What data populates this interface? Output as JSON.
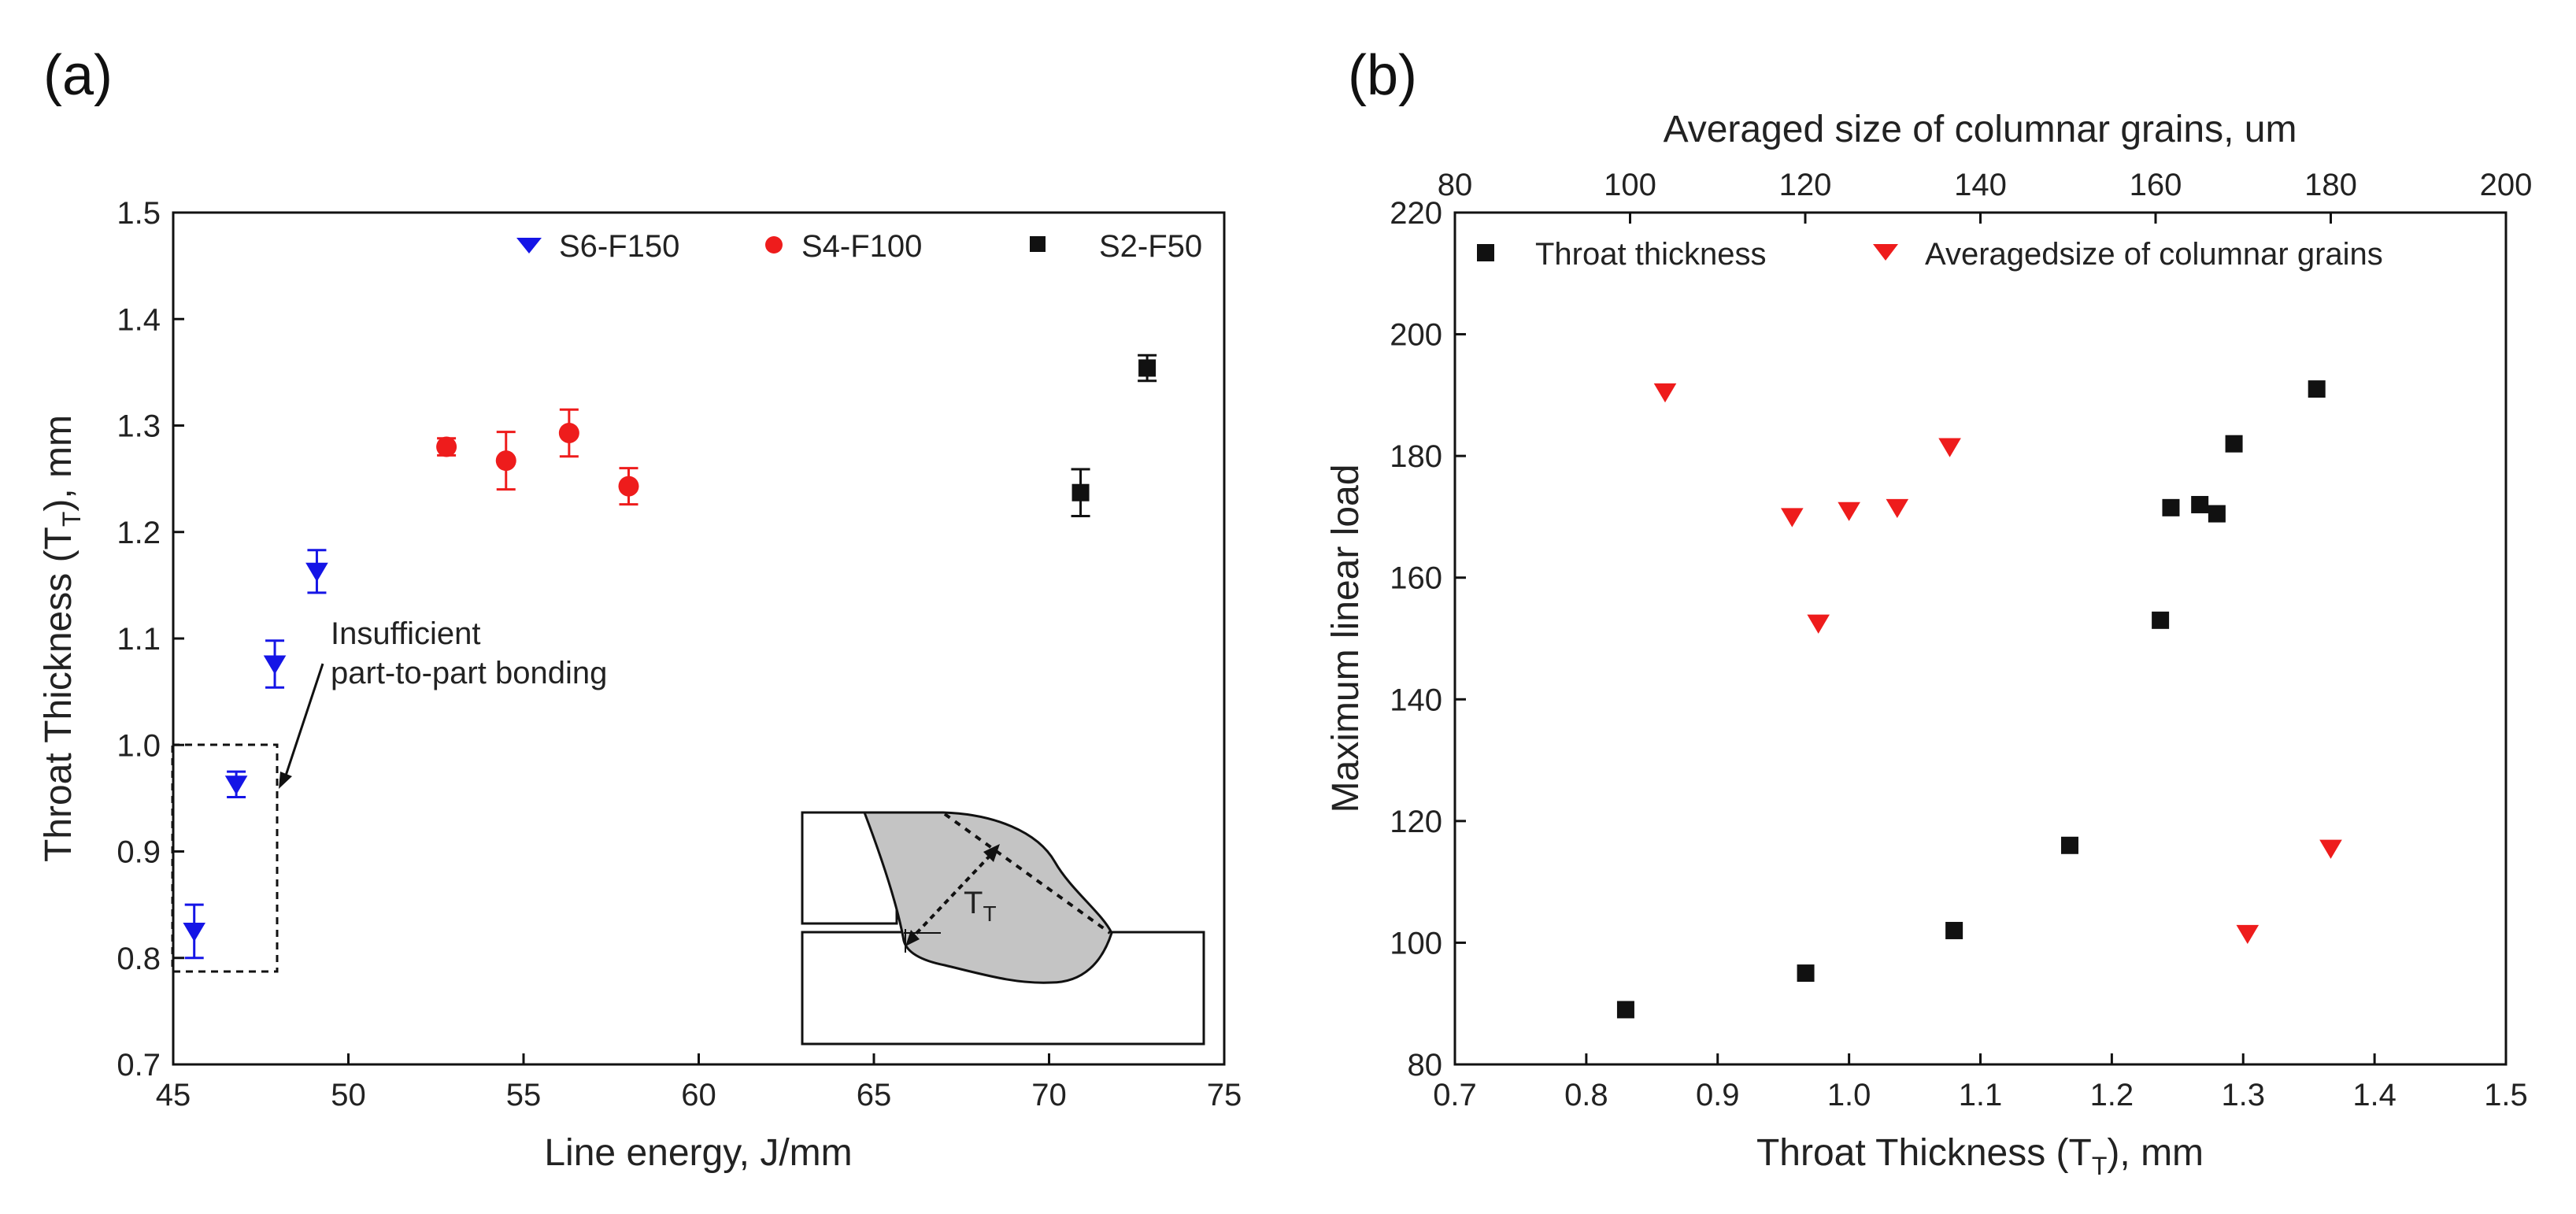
{
  "chart_data": [
    {
      "type": "scatter",
      "panel_label": "(a)",
      "xlabel": "Line energy, J/mm",
      "ylabel": "Throat Thickness (T",
      "ylabel_sub": "T",
      "ylabel_tail": "), mm",
      "xlim": [
        45,
        75
      ],
      "ylim": [
        0.7,
        1.5
      ],
      "x_ticks": [
        "45",
        "50",
        "55",
        "60",
        "65",
        "70",
        "75"
      ],
      "y_ticks": [
        "0.7",
        "0.8",
        "0.9",
        "1.0",
        "1.1",
        "1.2",
        "1.3",
        "1.4",
        "1.5"
      ],
      "legend_placement": "top-right",
      "series": [
        {
          "name": "S6-F150",
          "marker": "triangle-down",
          "color": "#1515e6",
          "points": [
            {
              "x": 45.6,
              "y": 0.825,
              "err": 0.025
            },
            {
              "x": 46.8,
              "y": 0.963,
              "err": 0.012
            },
            {
              "x": 47.9,
              "y": 1.076,
              "err": 0.022
            },
            {
              "x": 49.1,
              "y": 1.163,
              "err": 0.02
            }
          ]
        },
        {
          "name": "S4-F100",
          "marker": "circle",
          "color": "#ee1c1c",
          "points": [
            {
              "x": 52.8,
              "y": 1.28,
              "err": 0.008
            },
            {
              "x": 54.5,
              "y": 1.267,
              "err": 0.027
            },
            {
              "x": 56.3,
              "y": 1.293,
              "err": 0.022
            },
            {
              "x": 58.0,
              "y": 1.243,
              "err": 0.017
            }
          ]
        },
        {
          "name": "S2-F50",
          "marker": "square",
          "color": "#111111",
          "points": [
            {
              "x": 70.9,
              "y": 1.237,
              "err": 0.022
            },
            {
              "x": 72.8,
              "y": 1.354,
              "err": 0.012
            }
          ]
        }
      ],
      "annotation": {
        "line1": "Insufficient",
        "line2": "part-to-part bonding"
      },
      "inset_label": "T",
      "inset_label_sub": "T"
    },
    {
      "type": "scatter",
      "panel_label": "(b)",
      "xlabel": "Throat Thickness (T",
      "xlabel_sub": "T",
      "xlabel_tail": "), mm",
      "x2label": "Averaged size of columnar grains, um",
      "ylabel": "Maximum linear load",
      "xlim": [
        0.7,
        1.5
      ],
      "x2lim": [
        80,
        200
      ],
      "ylim": [
        80,
        220
      ],
      "x_ticks": [
        "0.7",
        "0.8",
        "0.9",
        "1.0",
        "1.1",
        "1.2",
        "1.3",
        "1.4",
        "1.5"
      ],
      "x2_ticks": [
        "80",
        "100",
        "120",
        "140",
        "160",
        "180",
        "200"
      ],
      "y_ticks": [
        "80",
        "100",
        "120",
        "140",
        "160",
        "180",
        "200",
        "220"
      ],
      "legend_placement": "top",
      "series": [
        {
          "name": "Throat thickness",
          "marker": "square",
          "color": "#111111",
          "axis": "bottom",
          "points": [
            {
              "x": 0.83,
              "y": 89
            },
            {
              "x": 0.967,
              "y": 95
            },
            {
              "x": 1.08,
              "y": 102
            },
            {
              "x": 1.168,
              "y": 116
            },
            {
              "x": 1.237,
              "y": 153
            },
            {
              "x": 1.245,
              "y": 171.5
            },
            {
              "x": 1.267,
              "y": 172
            },
            {
              "x": 1.28,
              "y": 170.5
            },
            {
              "x": 1.293,
              "y": 182
            },
            {
              "x": 1.356,
              "y": 191
            }
          ]
        },
        {
          "name": "Averagedsize of columnar grains",
          "marker": "triangle-down",
          "color": "#ee1c1c",
          "axis": "top",
          "points": [
            {
              "x": 104,
              "y": 190.5
            },
            {
              "x": 118.5,
              "y": 170
            },
            {
              "x": 121.5,
              "y": 152.5
            },
            {
              "x": 125,
              "y": 171
            },
            {
              "x": 130.5,
              "y": 171.5
            },
            {
              "x": 136.5,
              "y": 181.5
            },
            {
              "x": 170.5,
              "y": 101.5
            },
            {
              "x": 180,
              "y": 115.5
            }
          ]
        }
      ]
    }
  ]
}
